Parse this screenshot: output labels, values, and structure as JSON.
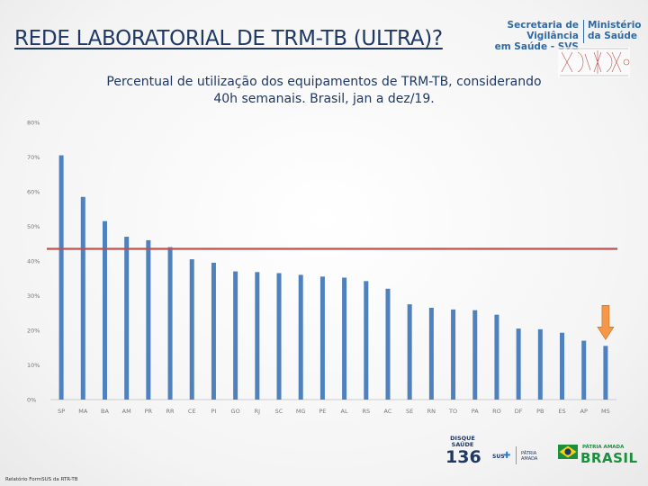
{
  "slide": {
    "title": "REDE LABORATORIAL DE TRM-TB (ULTRA)?",
    "source": "Relatório FormSUS da RTR-TB"
  },
  "logos": {
    "svs_line1": "Secretaria de Vigilância",
    "svs_line2": "em Saúde - SVS",
    "ministerio_line1": "Ministério",
    "ministerio_line2": "da Saúde",
    "disque_line1": "DISQUE",
    "disque_line2": "SAÚDE",
    "disque_number": "136",
    "sus": "SUS",
    "patria_line1": "PÁTRIA",
    "patria_line2": "AMADA",
    "patria_amada": "PÁTRIA AMADA",
    "brasil": "BRASIL"
  },
  "chart_data": {
    "type": "bar",
    "title": "Percentual de utilização dos equipamentos de TRM-TB, considerando 40h semanais. Brasil, jan a dez/19.",
    "title_line1": "Percentual de utilização dos equipamentos de TRM-TB, considerando",
    "title_line2": "40h semanais. Brasil, jan a dez/19.",
    "xlabel": "",
    "ylabel": "",
    "categories": [
      "SP",
      "MA",
      "BA",
      "AM",
      "PR",
      "RR",
      "CE",
      "PI",
      "GO",
      "RJ",
      "SC",
      "MG",
      "PE",
      "AL",
      "RS",
      "AC",
      "SE",
      "RN",
      "TO",
      "PA",
      "RO",
      "DF",
      "PB",
      "ES",
      "AP",
      "MS"
    ],
    "values": [
      70.5,
      58.5,
      51.5,
      47,
      46,
      44,
      40.5,
      39.5,
      37,
      36.8,
      36.5,
      36,
      35.5,
      35.2,
      34.2,
      32,
      27.5,
      26.5,
      26,
      25.8,
      24.5,
      20.5,
      20.3,
      19.3,
      17,
      15.5
    ],
    "ylim": [
      0,
      80
    ],
    "yticks": [
      0,
      10,
      20,
      30,
      40,
      50,
      60,
      70,
      80
    ],
    "ytick_labels": [
      "0%",
      "10%",
      "20%",
      "30%",
      "40%",
      "50%",
      "60%",
      "70%",
      "80%"
    ],
    "reference_line": 43.5,
    "highlight_category": "MS",
    "grid": false,
    "legend": "none",
    "colors": {
      "bar": "#4f81bd",
      "reference_line": "#c0504d",
      "highlight_arrow": "#f79646",
      "axis": "#bfbfbf"
    }
  }
}
